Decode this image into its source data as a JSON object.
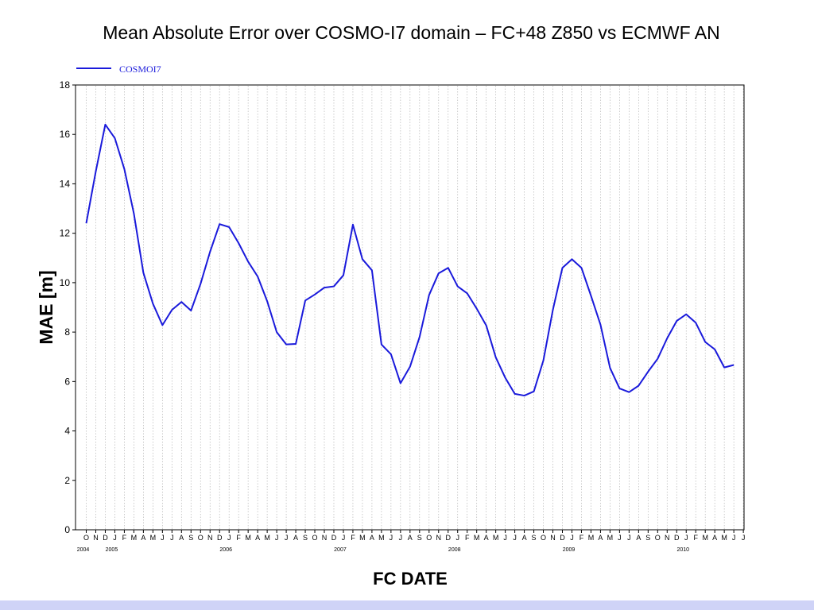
{
  "slide": {
    "title": "Mean Absolute Error over COSMO-I7 domain – FC+48 Z850 vs ECMWF AN"
  },
  "chart_data": {
    "type": "line",
    "title": "Mean Absolute Error over COSMO-I7 domain – FC+48 Z850 vs ECMWF AN",
    "xlabel": "FC DATE",
    "ylabel": "MAE [m]",
    "ylim": [
      0,
      18
    ],
    "yticks": [
      0,
      2,
      4,
      6,
      8,
      10,
      12,
      14,
      16,
      18
    ],
    "grid": "vertical dotted lines at each month",
    "legend_position": "top-left",
    "line_color": "#1a1adb",
    "x_month_labels": [
      "O",
      "N",
      "D",
      "J",
      "F",
      "M",
      "A",
      "M",
      "J",
      "J",
      "A",
      "S",
      "O",
      "N",
      "D",
      "J",
      "F",
      "M",
      "A",
      "M",
      "J",
      "J",
      "A",
      "S",
      "O",
      "N",
      "D",
      "J",
      "F",
      "M",
      "A",
      "M",
      "J",
      "J",
      "A",
      "S",
      "O",
      "N",
      "D",
      "J",
      "F",
      "M",
      "A",
      "M",
      "J",
      "J",
      "A",
      "S",
      "O",
      "N",
      "D",
      "J",
      "F",
      "M",
      "A",
      "M",
      "J",
      "J",
      "A",
      "S",
      "O",
      "N",
      "D",
      "J",
      "F",
      "M",
      "A",
      "M",
      "J",
      "J"
    ],
    "year_labels": [
      {
        "index": 0,
        "label": "2004"
      },
      {
        "index": 3,
        "label": "2005"
      },
      {
        "index": 15,
        "label": "2006"
      },
      {
        "index": 27,
        "label": "2007"
      },
      {
        "index": 39,
        "label": "2008"
      },
      {
        "index": 51,
        "label": "2009"
      },
      {
        "index": 63,
        "label": "2010"
      }
    ],
    "series": [
      {
        "name": "COSMOI7",
        "values": [
          12.4,
          14.5,
          16.4,
          15.85,
          14.6,
          12.8,
          10.4,
          9.15,
          8.28,
          8.9,
          9.22,
          8.87,
          9.95,
          11.25,
          12.37,
          12.25,
          11.6,
          10.85,
          10.25,
          9.25,
          8.0,
          7.5,
          7.52,
          9.28,
          9.52,
          9.8,
          9.85,
          10.3,
          12.35,
          10.95,
          10.5,
          7.5,
          7.1,
          5.93,
          6.6,
          7.8,
          9.5,
          10.38,
          10.6,
          9.85,
          9.57,
          8.95,
          8.27,
          6.98,
          6.15,
          5.5,
          5.43,
          5.6,
          6.85,
          8.9,
          10.6,
          10.95,
          10.6,
          9.47,
          8.3,
          6.55,
          5.72,
          5.57,
          5.83,
          6.4,
          6.92,
          7.75,
          8.45,
          8.72,
          8.38,
          7.6,
          7.3,
          6.57,
          6.67
        ]
      }
    ]
  }
}
